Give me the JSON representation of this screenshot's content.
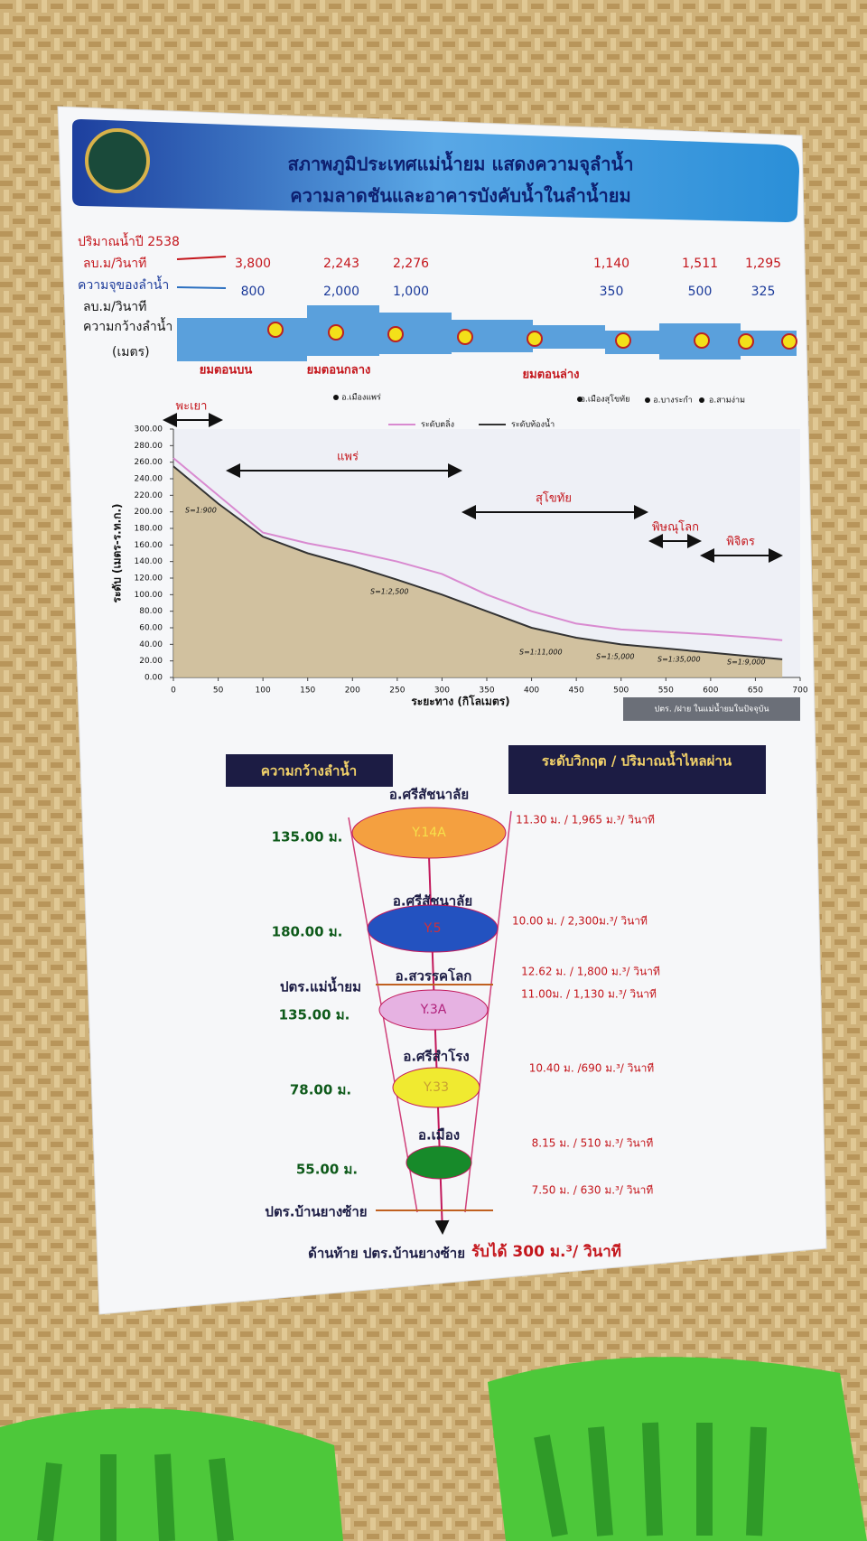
{
  "header": {
    "title_line1": "สภาพภูมิประเทศแม่น้ำยม แสดงความจุลำน้ำ",
    "title_line2": "ความลาดชันและอาคารบังคับน้ำในลำน้ำยม"
  },
  "flow_table": {
    "label_flow": "ปริมาณน้ำปี 2538",
    "label_flow_unit": "ลบ.ม/วินาที",
    "label_capacity": "ความจุของลำน้ำ",
    "label_capacity_unit": "ลบ.ม/วินาที",
    "label_width": "ความกว้างลำน้ำ",
    "label_width_unit": "(เมตร)",
    "flow_1995": [
      "3,800",
      "2,243",
      "2,276",
      "1,140",
      "1,511",
      "1,295"
    ],
    "capacity": [
      "800",
      "2,000",
      "1,000",
      "350",
      "500",
      "325"
    ],
    "reaches": [
      "ยมตอนบน",
      "ยมตอนกลาง",
      "ยมตอนล่าง"
    ],
    "towns": [
      "อ.เมืองแพร่",
      "อ.เมืองสุโขทัย",
      "อ.บางระกำ",
      "อ.สามง่าม"
    ]
  },
  "chart_data": {
    "type": "line",
    "x_label": "ระยะทาง (กิโลเมตร)",
    "y_label": "ระดับ (เมตร-ร.ท.ก.)",
    "x": [
      0,
      50,
      100,
      150,
      200,
      250,
      300,
      350,
      400,
      450,
      500,
      550,
      600,
      650,
      680
    ],
    "series": [
      {
        "name": "ระดับตลิ่ง",
        "color": "#d98ad0",
        "values": [
          265,
          220,
          175,
          162,
          152,
          140,
          125,
          100,
          80,
          65,
          58,
          55,
          52,
          48,
          45
        ]
      },
      {
        "name": "ระดับท้องน้ำ",
        "color": "#333333",
        "values": [
          255,
          210,
          170,
          150,
          135,
          118,
          100,
          80,
          60,
          48,
          40,
          35,
          30,
          25,
          22
        ]
      }
    ],
    "xlim": [
      0,
      700
    ],
    "xticks": [
      0,
      50,
      100,
      150,
      200,
      250,
      300,
      350,
      400,
      450,
      500,
      550,
      600,
      650,
      700
    ],
    "ylim": [
      0,
      300
    ],
    "yticks": [
      {
        "value": 0,
        "label": "0.00"
      },
      {
        "value": 20,
        "label": "20.00"
      },
      {
        "value": 40,
        "label": "40.00"
      },
      {
        "value": 60,
        "label": "60.00"
      },
      {
        "value": 80,
        "label": "80.00"
      },
      {
        "value": 100,
        "label": "100.00"
      },
      {
        "value": 120,
        "label": "120.00"
      },
      {
        "value": 140,
        "label": "140.00"
      },
      {
        "value": 160,
        "label": "160.00"
      },
      {
        "value": 180,
        "label": "180.00"
      },
      {
        "value": 200,
        "label": "200.00"
      },
      {
        "value": 220,
        "label": "220.00"
      },
      {
        "value": 240,
        "label": "240.00"
      },
      {
        "value": 260,
        "label": "260.00"
      },
      {
        "value": 280,
        "label": "280.00"
      },
      {
        "value": 300,
        "label": "300.00"
      }
    ],
    "provinces": [
      "พะเยา",
      "แพร่",
      "สุโขทัย",
      "พิษณุโลก",
      "พิจิตร"
    ],
    "slopes": [
      "S=1:900",
      "S=1:2,500",
      "S=1:11,000",
      "S=1:5,000",
      "S=1:35,000",
      "S=1:9,000"
    ],
    "note": "ปตร. /ฝาย ในแม่น้ำยมในปัจจุบัน"
  },
  "funnel": {
    "width_header": "ความกว้างลำน้ำ",
    "critical_header": "ระดับวิกฤต / ปริมาณน้ำไหลผ่าน",
    "stations": [
      {
        "district": "อ.ศรีสัชนาลัย",
        "width": "135.00 ม.",
        "code": "Y.14A",
        "critical": "11.30 ม. / 1,965 ม.³/ วินาที"
      },
      {
        "district": "อ.ศรีสัชนาลัย",
        "width": "180.00 ม.",
        "code": "Y.5",
        "critical": "10.00 ม. / 2,300ม.³/ วินาที"
      },
      {
        "gate": "ปตร.แม่น้ำยม",
        "gate_critical": "12.62 ม. / 1,800 ม.³/ วินาที",
        "district": "อ.สวรรคโลก",
        "width": "135.00 ม.",
        "code": "Y.3A",
        "critical": "11.00ม. / 1,130 ม.³/ วินาที"
      },
      {
        "district": "อ.ศรีสำโรง",
        "width": "78.00 ม.",
        "code": "Y.33",
        "critical": "10.40 ม. /690 ม.³/ วินาที"
      },
      {
        "district": "อ.เมือง",
        "width": "55.00 ม.",
        "critical": "8.15 ม. / 510 ม.³/ วินาที"
      },
      {
        "gate": "ปตร.บ้านยางซ้าย",
        "gate_critical": "7.50 ม. / 630 ม.³/ วินาที"
      }
    ],
    "footer": "ด้านท้าย ปตร.บ้านยางซ้าย",
    "footer_capacity": "รับได้ 300 ม.³/ วินาที"
  }
}
